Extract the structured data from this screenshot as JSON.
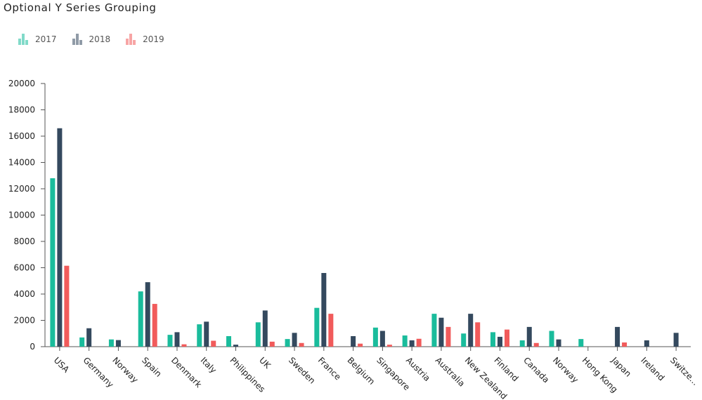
{
  "title": "Optional Y Series Grouping",
  "chart_data": {
    "type": "bar",
    "title": "Optional Y Series Grouping",
    "xlabel": "",
    "ylabel": "",
    "ylim": [
      0,
      20000
    ],
    "yticks": [
      0,
      2000,
      4000,
      6000,
      8000,
      10000,
      12000,
      14000,
      16000,
      18000,
      20000
    ],
    "grid": false,
    "legend_position": "top-left",
    "categories": [
      "USA",
      "Germany",
      "Norway",
      "Spain",
      "Denmark",
      "Italy",
      "Philippines",
      "UK",
      "Sweden",
      "France",
      "Belgium",
      "Singapore",
      "Austria",
      "Australia",
      "New Zealand",
      "Finland",
      "Canada",
      "Norway",
      "Hong Kong",
      "Japan",
      "Ireland",
      "Switze..."
    ],
    "series": [
      {
        "name": "2017",
        "color": "#1abc9c",
        "values": [
          12800,
          700,
          550,
          4200,
          900,
          1700,
          800,
          1850,
          580,
          2950,
          0,
          1450,
          850,
          2500,
          1000,
          1100,
          480,
          1200,
          580,
          0,
          0,
          0
        ]
      },
      {
        "name": "2018",
        "color": "#34495e",
        "values": [
          16600,
          1400,
          500,
          4900,
          1100,
          1900,
          150,
          2750,
          1050,
          5600,
          800,
          1200,
          480,
          2200,
          2500,
          750,
          1500,
          550,
          0,
          1500,
          480,
          1050
        ]
      },
      {
        "name": "2019",
        "color": "#f15b5b",
        "values": [
          6150,
          0,
          0,
          3250,
          180,
          450,
          0,
          380,
          280,
          2500,
          230,
          150,
          600,
          1500,
          1850,
          1300,
          280,
          0,
          0,
          320,
          0,
          0
        ]
      }
    ]
  }
}
